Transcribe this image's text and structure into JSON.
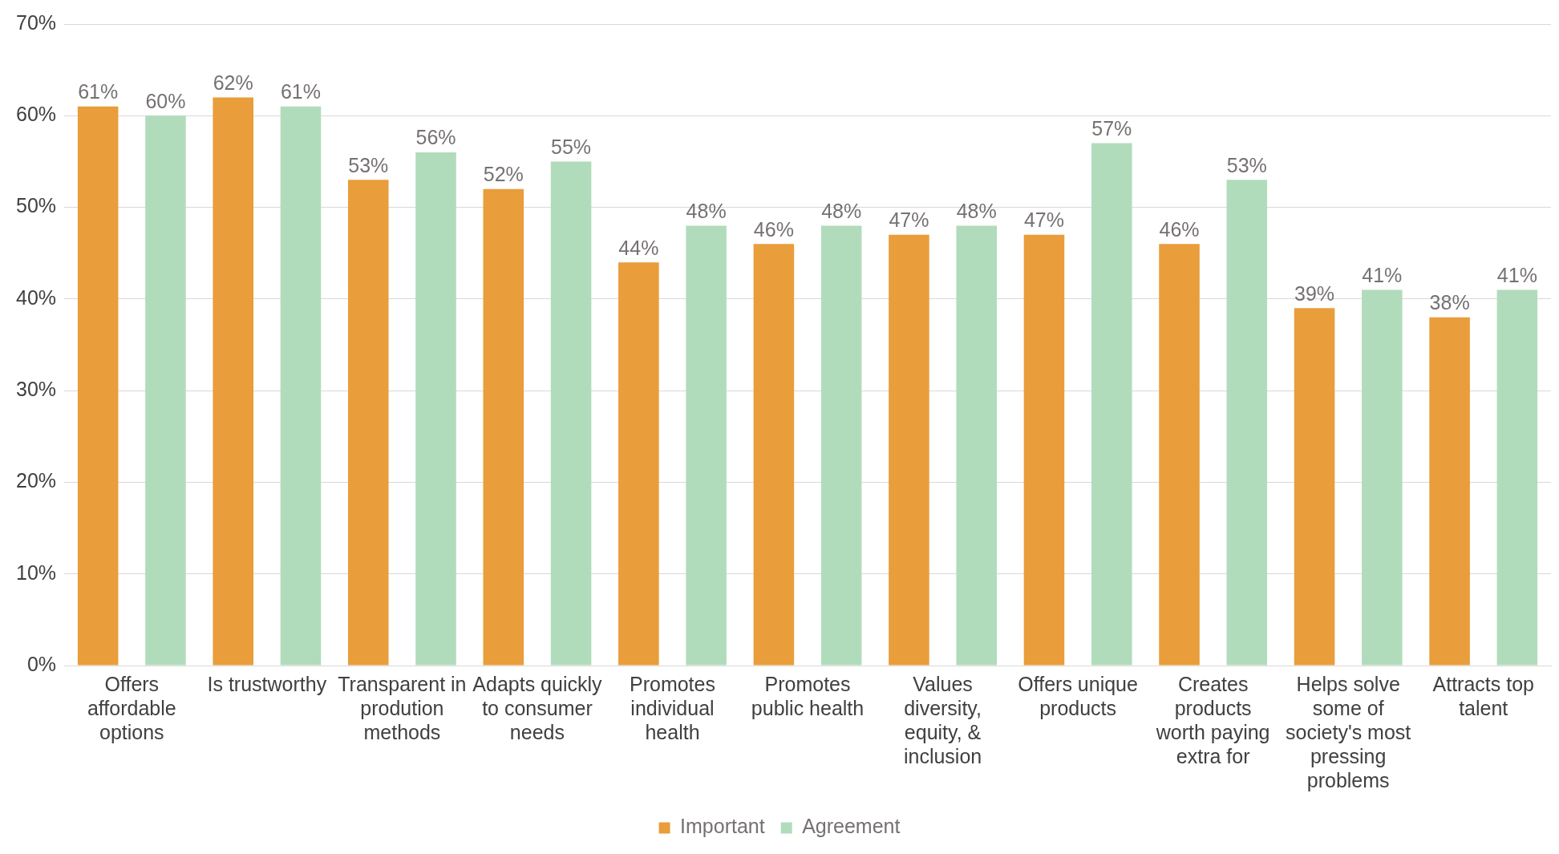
{
  "chart_data": {
    "type": "bar",
    "categories": [
      "Offers affordable options",
      "Is trustworthy",
      "Transparent in prodution methods",
      "Adapts quickly to consumer needs",
      "Promotes individual health",
      "Promotes public health",
      "Values diversity, equity, & inclusion",
      "Offers unique products",
      "Creates products worth paying extra for",
      "Helps solve some of society's most pressing problems",
      "Attracts top talent"
    ],
    "series": [
      {
        "name": "Important",
        "color": "#e99d3b",
        "values": [
          61,
          62,
          53,
          52,
          44,
          46,
          47,
          47,
          46,
          39,
          38
        ],
        "value_labels": [
          "61%",
          "62%",
          "53%",
          "52%",
          "44%",
          "46%",
          "47%",
          "47%",
          "46%",
          "39%",
          "38%"
        ]
      },
      {
        "name": "Agreement",
        "color": "#b1dcbb",
        "values": [
          60,
          61,
          56,
          55,
          48,
          48,
          48,
          57,
          53,
          41,
          41
        ],
        "value_labels": [
          "60%",
          "61%",
          "56%",
          "55%",
          "48%",
          "48%",
          "48%",
          "57%",
          "53%",
          "41%",
          "41%"
        ]
      }
    ],
    "ylim": [
      0,
      70
    ],
    "yticks": [
      {
        "value": 0,
        "label": "0%"
      },
      {
        "value": 10,
        "label": "10%"
      },
      {
        "value": 20,
        "label": "20%"
      },
      {
        "value": 30,
        "label": "30%"
      },
      {
        "value": 40,
        "label": "40%"
      },
      {
        "value": 50,
        "label": "50%"
      },
      {
        "value": 60,
        "label": "60%"
      },
      {
        "value": 70,
        "label": "70%"
      }
    ],
    "grid": "y",
    "legend": "bottom"
  }
}
